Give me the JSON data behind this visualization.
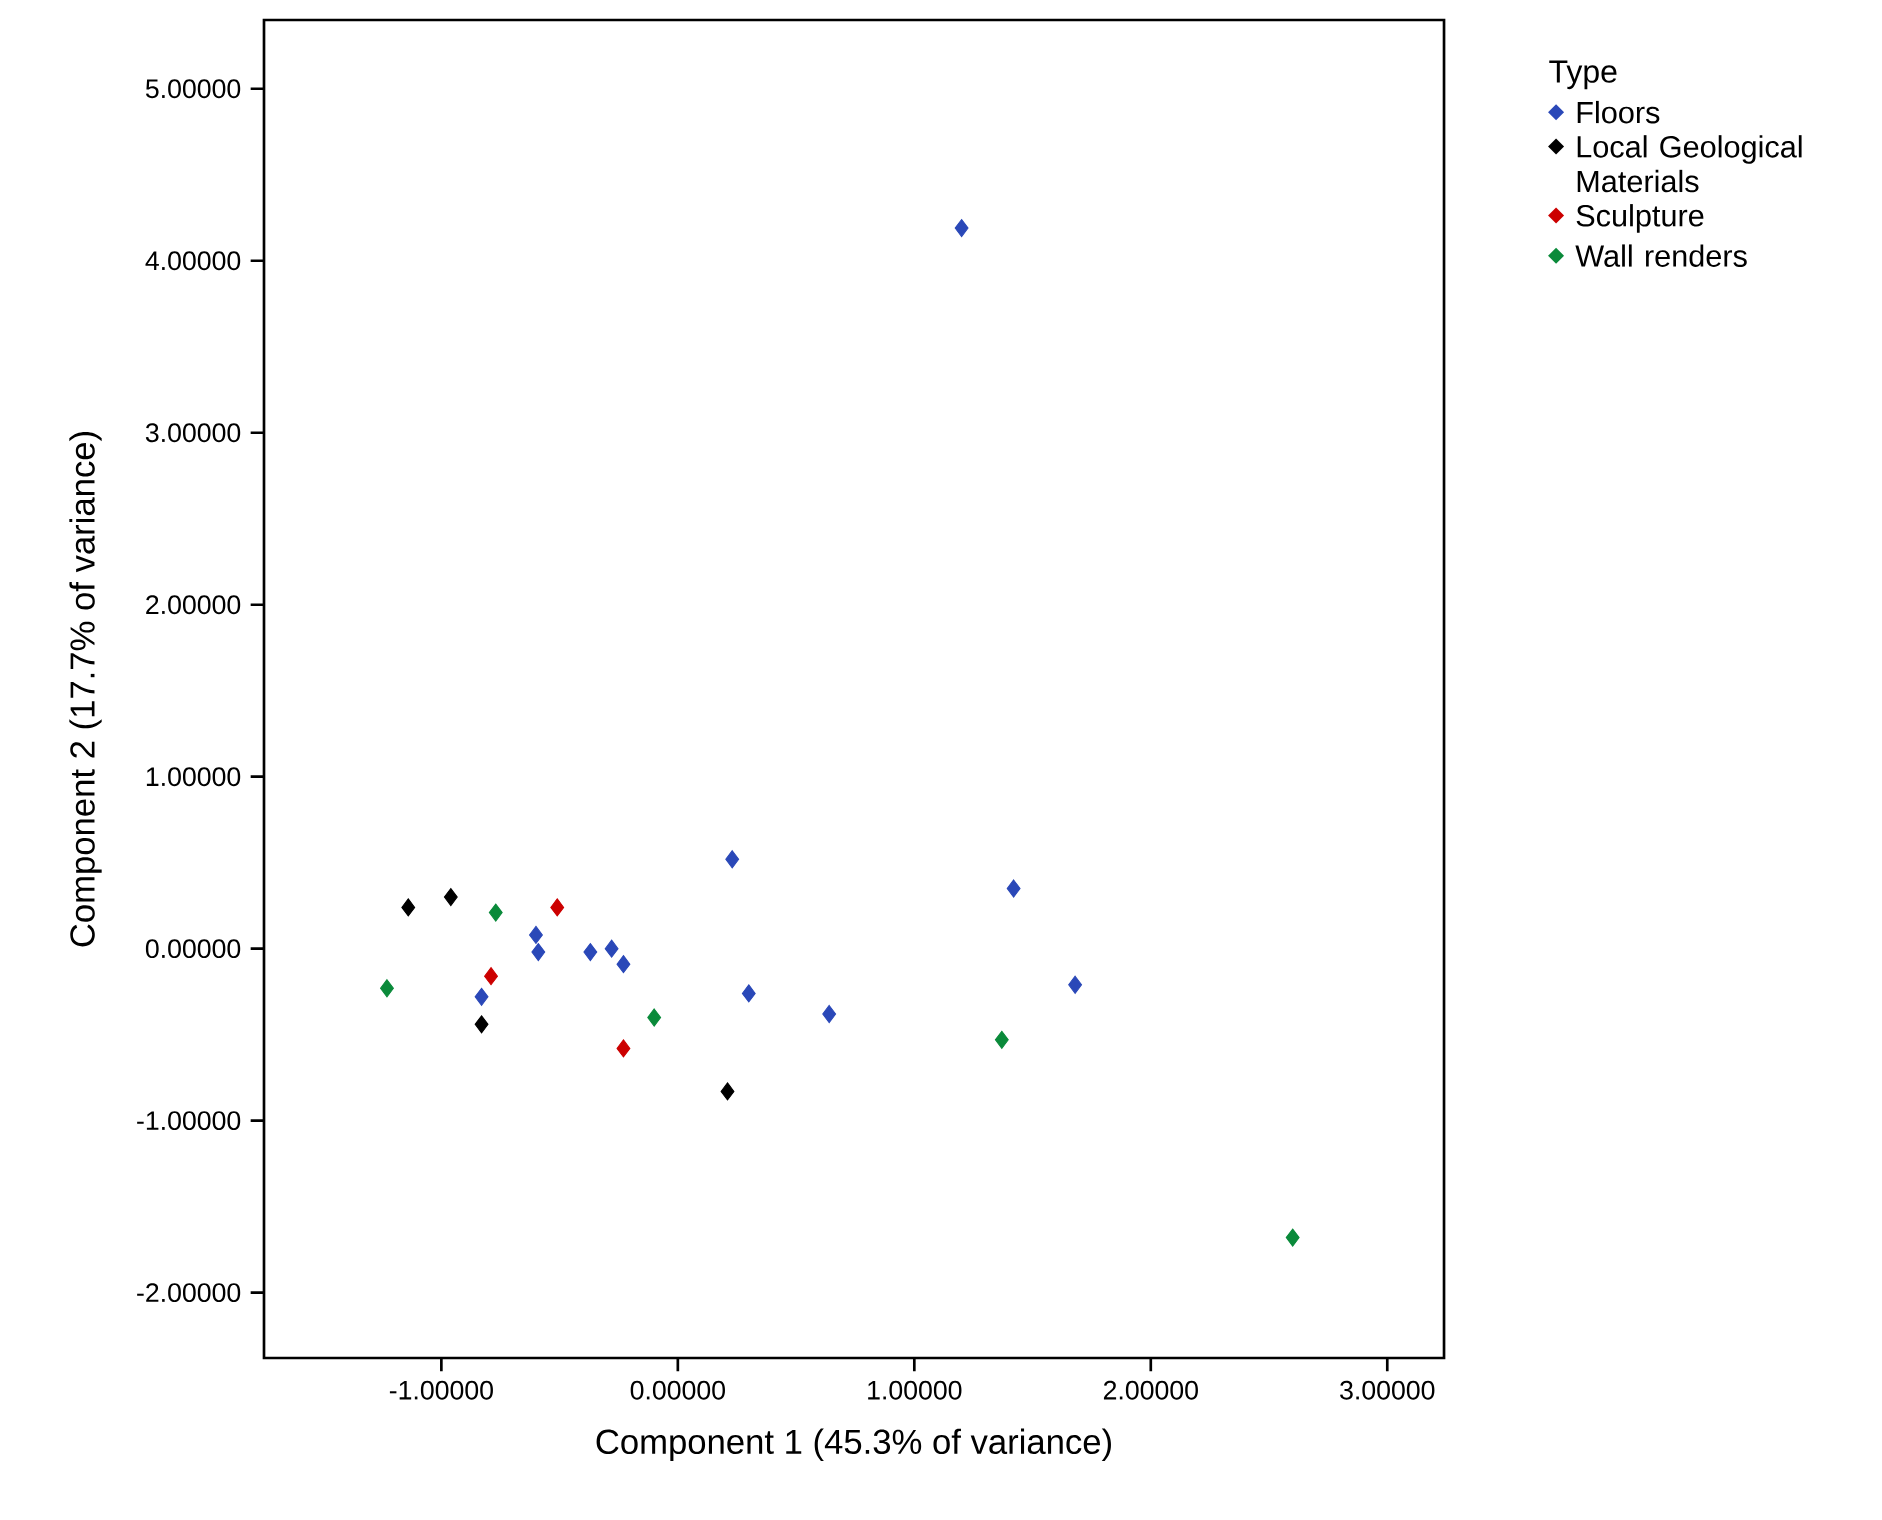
{
  "chart_data": {
    "type": "scatter",
    "xlabel": "Component 1 (45.3% of variance)",
    "ylabel": "Component 2 (17.7% of variance)",
    "legend_title": "Type",
    "xlim": [
      -1.75,
      3.24
    ],
    "ylim": [
      -2.38,
      5.4
    ],
    "xticks": [
      {
        "value": -1,
        "label": "-1.00000"
      },
      {
        "value": 0,
        "label": "0.00000"
      },
      {
        "value": 1,
        "label": "1.00000"
      },
      {
        "value": 2,
        "label": "2.00000"
      },
      {
        "value": 3,
        "label": "3.00000"
      }
    ],
    "yticks": [
      {
        "value": -2,
        "label": "-2.00000"
      },
      {
        "value": -1,
        "label": "-1.00000"
      },
      {
        "value": 0,
        "label": "0.00000"
      },
      {
        "value": 1,
        "label": "1.00000"
      },
      {
        "value": 2,
        "label": "2.00000"
      },
      {
        "value": 3,
        "label": "3.00000"
      },
      {
        "value": 4,
        "label": "4.00000"
      },
      {
        "value": 5,
        "label": "5.00000"
      }
    ],
    "grid": false,
    "legend": "top right",
    "marker": "diamond",
    "series": [
      {
        "name": "Floors",
        "color": "#2a48b8",
        "x": [
          -0.6,
          -0.59,
          -0.83,
          -0.37,
          -0.28,
          -0.23,
          0.23,
          0.3,
          0.64,
          1.42,
          1.68,
          1.2
        ],
        "values": [
          0.08,
          -0.02,
          -0.28,
          -0.02,
          0.0,
          -0.09,
          0.52,
          -0.26,
          -0.38,
          0.35,
          -0.21,
          4.19
        ]
      },
      {
        "name": "Local Geological Materials",
        "color": "#000000",
        "x": [
          -1.14,
          -0.96,
          -0.83,
          0.21
        ],
        "values": [
          0.24,
          0.3,
          -0.44,
          -0.83
        ]
      },
      {
        "name": "Sculpture",
        "color": "#cc0000",
        "x": [
          -0.51,
          -0.79,
          -0.23
        ],
        "values": [
          0.24,
          -0.16,
          -0.58
        ]
      },
      {
        "name": "Wall renders",
        "color": "#0a8a3a",
        "x": [
          -0.77,
          -1.23,
          -0.1,
          1.37,
          2.6
        ],
        "values": [
          0.21,
          -0.23,
          -0.4,
          -0.53,
          -1.68
        ]
      }
    ]
  }
}
